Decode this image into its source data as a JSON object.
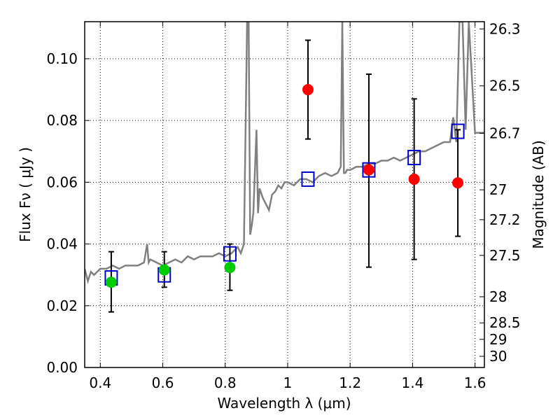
{
  "chart_data": {
    "type": "scatter",
    "xlabel": "Wavelength  λ (μm)",
    "ylabel": "Flux  Fν  ( μJy )",
    "ylabel_right": "Magnitude (AB)",
    "xlim": [
      0.35,
      1.63
    ],
    "ylim": [
      0.0,
      0.112
    ],
    "grid": true,
    "x_ticks": [
      {
        "value": 0.4,
        "label": "0.4"
      },
      {
        "value": 0.6,
        "label": "0.6"
      },
      {
        "value": 0.8,
        "label": "0.8"
      },
      {
        "value": 1.0,
        "label": "1"
      },
      {
        "value": 1.2,
        "label": "1.2"
      },
      {
        "value": 1.4,
        "label": "1.4"
      },
      {
        "value": 1.6,
        "label": "1.6"
      }
    ],
    "y_ticks": [
      {
        "value": 0.0,
        "label": "0.00"
      },
      {
        "value": 0.02,
        "label": "0.02"
      },
      {
        "value": 0.04,
        "label": "0.04"
      },
      {
        "value": 0.06,
        "label": "0.06"
      },
      {
        "value": 0.08,
        "label": "0.08"
      },
      {
        "value": 0.1,
        "label": "0.10"
      }
    ],
    "right_ticks": [
      {
        "mag": 26.3,
        "label": "26.3"
      },
      {
        "mag": 26.5,
        "label": "26.5"
      },
      {
        "mag": 26.7,
        "label": "26.7"
      },
      {
        "mag": 27.0,
        "label": "27"
      },
      {
        "mag": 27.2,
        "label": "27.2"
      },
      {
        "mag": 27.5,
        "label": "27.5"
      },
      {
        "mag": 28.0,
        "label": "28"
      },
      {
        "mag": 28.5,
        "label": "28.5"
      },
      {
        "mag": 29.0,
        "label": "29"
      },
      {
        "mag": 30.0,
        "label": "30"
      }
    ],
    "series": [
      {
        "kind": "line",
        "color": "#808080",
        "x": [
          0.35,
          0.36,
          0.37,
          0.38,
          0.4,
          0.42,
          0.44,
          0.46,
          0.48,
          0.5,
          0.52,
          0.54,
          0.55,
          0.555,
          0.56,
          0.58,
          0.6,
          0.62,
          0.64,
          0.66,
          0.68,
          0.7,
          0.72,
          0.74,
          0.76,
          0.78,
          0.8,
          0.82,
          0.84,
          0.85,
          0.86,
          0.87,
          0.875,
          0.88,
          0.885,
          0.89,
          0.9,
          0.905,
          0.91,
          0.92,
          0.93,
          0.94,
          0.95,
          0.96,
          0.97,
          0.98,
          0.99,
          1.0,
          1.02,
          1.04,
          1.06,
          1.08,
          1.1,
          1.12,
          1.14,
          1.16,
          1.17,
          1.175,
          1.18,
          1.185,
          1.19,
          1.2,
          1.22,
          1.24,
          1.26,
          1.28,
          1.3,
          1.32,
          1.34,
          1.36,
          1.38,
          1.4,
          1.42,
          1.44,
          1.46,
          1.48,
          1.5,
          1.52,
          1.53,
          1.54,
          1.55,
          1.56,
          1.57,
          1.58,
          1.6,
          1.63
        ],
        "y": [
          0.032,
          0.028,
          0.031,
          0.03,
          0.032,
          0.032,
          0.033,
          0.032,
          0.033,
          0.033,
          0.033,
          0.034,
          0.04,
          0.034,
          0.035,
          0.034,
          0.033,
          0.034,
          0.035,
          0.034,
          0.036,
          0.035,
          0.036,
          0.036,
          0.036,
          0.037,
          0.036,
          0.037,
          0.039,
          0.037,
          0.04,
          0.112,
          0.112,
          0.043,
          0.046,
          0.05,
          0.077,
          0.05,
          0.058,
          0.055,
          0.053,
          0.051,
          0.056,
          0.057,
          0.059,
          0.058,
          0.06,
          0.06,
          0.059,
          0.061,
          0.061,
          0.06,
          0.062,
          0.063,
          0.062,
          0.063,
          0.065,
          0.112,
          0.063,
          0.063,
          0.064,
          0.064,
          0.065,
          0.065,
          0.066,
          0.066,
          0.067,
          0.067,
          0.068,
          0.067,
          0.068,
          0.069,
          0.07,
          0.07,
          0.071,
          0.072,
          0.073,
          0.073,
          0.081,
          0.073,
          0.112,
          0.112,
          0.077,
          0.112,
          0.076,
          0.076
        ]
      },
      {
        "kind": "errorbar",
        "color": "#000000",
        "x": [
          0.435,
          0.605,
          0.815,
          1.065,
          1.26,
          1.405,
          1.545
        ],
        "y": [
          0.0276,
          0.0316,
          0.0324,
          0.09,
          0.064,
          0.061,
          0.0598
        ],
        "low": [
          0.018,
          0.026,
          0.025,
          0.074,
          0.0325,
          0.035,
          0.0425
        ],
        "high": [
          0.0375,
          0.0375,
          0.04,
          0.106,
          0.095,
          0.087,
          0.077
        ]
      },
      {
        "kind": "marker",
        "shape": "square",
        "color": "#0000cc",
        "x": [
          0.435,
          0.605,
          0.815,
          1.065,
          1.26,
          1.405,
          1.545
        ],
        "y": [
          0.029,
          0.03,
          0.0368,
          0.061,
          0.064,
          0.068,
          0.0765
        ]
      },
      {
        "kind": "marker",
        "shape": "circle",
        "color": "#00cc00",
        "x": [
          0.435,
          0.605,
          0.815
        ],
        "y": [
          0.0276,
          0.0316,
          0.0324
        ]
      },
      {
        "kind": "marker",
        "shape": "circle",
        "color": "#ff0000",
        "x": [
          1.065,
          1.26,
          1.405,
          1.545
        ],
        "y": [
          0.09,
          0.064,
          0.061,
          0.0598
        ]
      }
    ]
  }
}
